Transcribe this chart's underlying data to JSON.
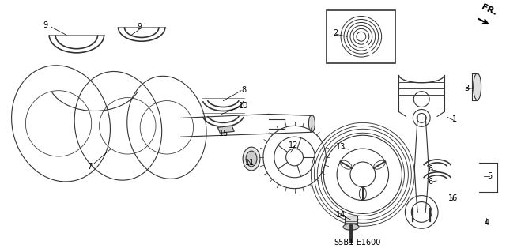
{
  "title": "",
  "background_color": "#ffffff",
  "footer_text": "S5B1-E1600",
  "fr_label": "FR.",
  "line_color": "#333333",
  "figsize": [
    6.4,
    3.19
  ],
  "dpi": 100,
  "labels": [
    [
      "9",
      55,
      30
    ],
    [
      "9",
      175,
      32
    ],
    [
      "8",
      308,
      112
    ],
    [
      "10",
      308,
      132
    ],
    [
      "7",
      112,
      210
    ],
    [
      "15",
      283,
      168
    ],
    [
      "11",
      316,
      205
    ],
    [
      "12",
      372,
      183
    ],
    [
      "13",
      432,
      185
    ],
    [
      "14",
      432,
      272
    ],
    [
      "2",
      425,
      40
    ],
    [
      "1",
      577,
      150
    ],
    [
      "3",
      593,
      110
    ],
    [
      "4",
      618,
      282
    ],
    [
      "5",
      622,
      222
    ],
    [
      "6",
      546,
      213
    ],
    [
      "6",
      546,
      229
    ],
    [
      "16",
      575,
      250
    ]
  ]
}
